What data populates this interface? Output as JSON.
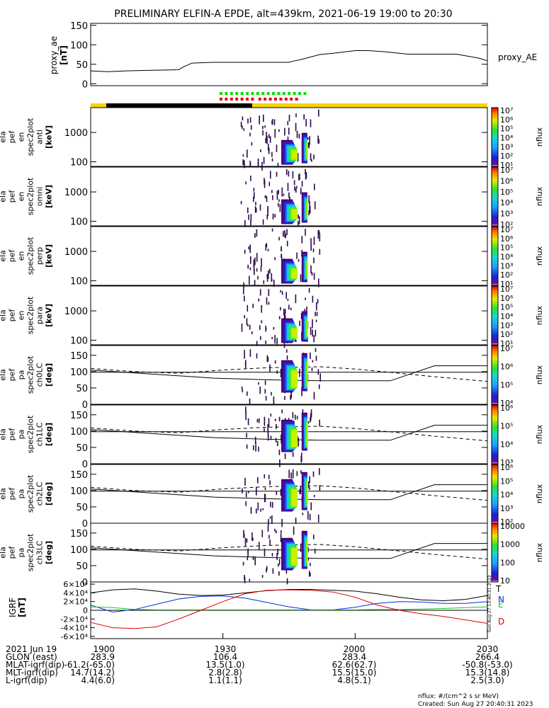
{
  "title": "PRELIMINARY ELFIN-A EPDE, alt=439km, 2021-06-19 19:00 to 20:30",
  "colors": {
    "orbit_day": "#f6d400",
    "orbit_night": "#000000",
    "orbit_day_end": "#f6d400",
    "flag_green": "#00e000",
    "flag_red": "#e00000",
    "igrf_T": "#000000",
    "igrf_N": "#0030e0",
    "igrf_E": "#20c020",
    "igrf_D": "#e00000"
  },
  "panels": [
    {
      "ylabel": [
        "proxy_ae",
        "[nT]"
      ],
      "legend": "proxy_AE"
    },
    {
      "ylabel": [
        "ela",
        "pef",
        "en",
        "spec2plot",
        "anti",
        "[keV]"
      ],
      "zlabel": "nflux"
    },
    {
      "ylabel": [
        "ela",
        "pef",
        "en",
        "spec2plot",
        "omni",
        "[keV]"
      ],
      "zlabel": "nflux"
    },
    {
      "ylabel": [
        "ela",
        "pef",
        "en",
        "spec2plot",
        "perp",
        "[keV]"
      ],
      "zlabel": "nflux"
    },
    {
      "ylabel": [
        "ela",
        "pef",
        "en",
        "spec2plot",
        "para",
        "[keV]"
      ],
      "zlabel": "nflux"
    },
    {
      "ylabel": [
        "ela",
        "pef",
        "pa",
        "spec2plot",
        "ch0LC",
        "[deg]"
      ],
      "zlabel": "nflux"
    },
    {
      "ylabel": [
        "ela",
        "pef",
        "pa",
        "spec2plot",
        "ch1LC",
        "[deg]"
      ],
      "zlabel": "nflux"
    },
    {
      "ylabel": [
        "ela",
        "pef",
        "pa",
        "spec2plot",
        "ch2LC",
        "[deg]"
      ],
      "zlabel": "nflux"
    },
    {
      "ylabel": [
        "ela",
        "pef",
        "pa",
        "spec2plot",
        "ch3LC",
        "[deg]"
      ],
      "zlabel": "nflux"
    },
    {
      "ylabel": [
        "IGRF",
        "[nT]"
      ],
      "legend_components": [
        "T",
        "N",
        "E",
        "D"
      ]
    }
  ],
  "colorbars": [
    {
      "ticks": [
        "10⁷",
        "10⁶",
        "10⁵",
        "10⁴",
        "10³",
        "10²",
        "10¹"
      ]
    },
    {
      "ticks": [
        "10⁷",
        "10⁶",
        "10⁵",
        "10⁴",
        "10³",
        "10²"
      ]
    },
    {
      "ticks": [
        "10⁷",
        "10⁶",
        "10⁵",
        "10⁴",
        "10³",
        "10²",
        "10¹"
      ]
    },
    {
      "ticks": [
        "10⁷",
        "10⁶",
        "10⁵",
        "10⁴",
        "10³",
        "10²",
        "10¹"
      ]
    },
    {
      "ticks": [
        "10⁷",
        "10⁶",
        "10⁵",
        "10⁴"
      ]
    },
    {
      "ticks": [
        "10⁶",
        "10⁵",
        "10⁴",
        "10³"
      ]
    },
    {
      "ticks": [
        "10⁶",
        "10⁵",
        "10⁴",
        "10³",
        "10²"
      ]
    },
    {
      "ticks": [
        "10000",
        "1000",
        "100",
        "10"
      ]
    }
  ],
  "ephemeris": {
    "rows": [
      {
        "label": "2021 Jun 19",
        "values": [
          "1900",
          "1930",
          "2000",
          "2030"
        ]
      },
      {
        "label": "GLON (east)",
        "values": [
          "283.9",
          "106.4",
          "283.4",
          "266.4"
        ]
      },
      {
        "label": "MLAT-igrf(dip)",
        "values": [
          "-61.2(-65.0)",
          "13.5(1.0)",
          "62.6(62.7)",
          "-50.8(-53.0)"
        ]
      },
      {
        "label": "MLT-igrf(dip)",
        "values": [
          "14.7(14.2)",
          "2.8(2.8)",
          "15.5(15.0)",
          "15.3(14.8)"
        ]
      },
      {
        "label": "L-igrf(dip)",
        "values": [
          "4.4(6.0)",
          "1.1(1.1)",
          "4.8(5.1)",
          "2.5(3.0)"
        ]
      }
    ]
  },
  "footer": {
    "units": "nflux: #/(cm^2 s sr MeV)",
    "created": "Created: Sun Aug 27 20:40:31 2023",
    "side_stamp": "Sun Aug 27 13:40:31 2023"
  },
  "chart_data": {
    "type": "line",
    "title": "PRELIMINARY ELFIN-A EPDE, alt=439km, 2021-06-19 19:00 to 20:30",
    "x_ticks": [
      "1900",
      "1930",
      "2000",
      "2030"
    ],
    "x_tick_minutes": [
      0,
      30,
      60,
      90
    ],
    "proxy_ae": {
      "ylim": [
        -5,
        155
      ],
      "yticks": [
        0,
        50,
        100,
        150
      ],
      "x_minutes": [
        0,
        4,
        8,
        12,
        16,
        20,
        21,
        23,
        28,
        36,
        45,
        46,
        48,
        52,
        55,
        60,
        63,
        67,
        72,
        75,
        80,
        83,
        85,
        88,
        90
      ],
      "values": [
        33,
        31,
        33,
        34,
        35,
        36,
        43,
        53,
        55,
        55,
        55,
        58,
        63,
        75,
        78,
        85,
        85,
        82,
        76,
        76,
        76,
        76,
        72,
        66,
        59
      ]
    },
    "energy_panels": {
      "yticks": [
        100,
        1000
      ],
      "ylim_keV": [
        70,
        7000
      ],
      "zlim": [
        10,
        10000000
      ]
    },
    "pitch_angle_panels": {
      "ylim": [
        0,
        180
      ],
      "yticks": [
        0,
        50,
        100,
        150
      ]
    },
    "igrf": {
      "ylim": [
        -65000,
        65000
      ],
      "yticks": [
        -60000,
        -40000,
        -20000,
        0,
        20000,
        40000,
        60000
      ],
      "ytick_labels": [
        "-6×10⁴",
        "-4×10⁴",
        "-2×10⁴",
        "0",
        "2×10⁴",
        "4×10⁴",
        "6×10⁴"
      ],
      "x_minutes": [
        0,
        5,
        10,
        15,
        20,
        25,
        30,
        35,
        40,
        45,
        50,
        55,
        60,
        65,
        70,
        75,
        80,
        85,
        90
      ],
      "series": [
        {
          "name": "T",
          "values": [
            40000,
            47000,
            49000,
            44000,
            37000,
            34000,
            35000,
            40000,
            45000,
            48000,
            48000,
            46000,
            44000,
            38000,
            30000,
            24000,
            22000,
            25000,
            34000
          ]
        },
        {
          "name": "N",
          "values": [
            12000,
            -4000,
            2000,
            14000,
            26000,
            32000,
            33000,
            28000,
            18000,
            8000,
            1000,
            1000,
            7000,
            16000,
            20000,
            19000,
            16000,
            16000,
            20000
          ]
        },
        {
          "name": "E",
          "values": [
            8000,
            6000,
            2000,
            1000,
            1000,
            1000,
            1000,
            1000,
            1000,
            1000,
            1000,
            1000,
            1000,
            2000,
            2000,
            3000,
            4000,
            6000,
            8000
          ]
        },
        {
          "name": "D",
          "values": [
            -28000,
            -40000,
            -42000,
            -38000,
            -20000,
            0,
            20000,
            38000,
            46000,
            47000,
            46000,
            42000,
            30000,
            12000,
            0,
            -8000,
            -14000,
            -22000,
            -30000
          ]
        }
      ]
    }
  }
}
